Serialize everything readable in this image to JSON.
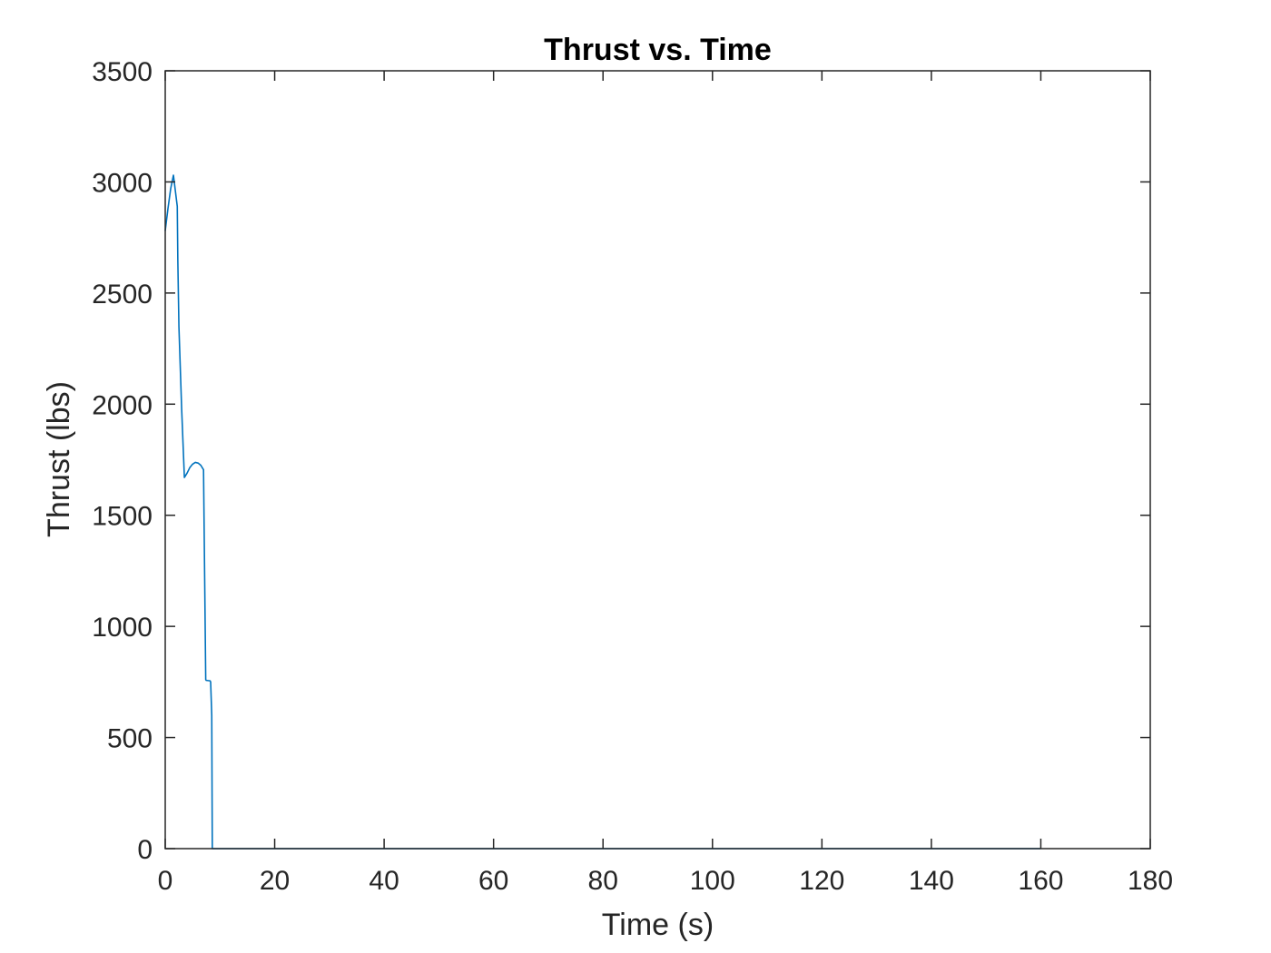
{
  "chart_data": {
    "type": "line",
    "title": "Thrust vs. Time",
    "xlabel": "Time (s)",
    "ylabel": "Thrust (lbs)",
    "xlim": [
      0,
      180
    ],
    "ylim": [
      0,
      3500
    ],
    "x_ticks": [
      0,
      20,
      40,
      60,
      80,
      100,
      120,
      140,
      160,
      180
    ],
    "x_tick_labels": [
      "0",
      "20",
      "40",
      "60",
      "80",
      "100",
      "120",
      "140",
      "160",
      "180"
    ],
    "y_ticks": [
      0,
      500,
      1000,
      1500,
      2000,
      2500,
      3000,
      3500
    ],
    "y_tick_labels": [
      "0",
      "500",
      "1000",
      "1500",
      "2000",
      "2500",
      "3000",
      "3500"
    ],
    "grid": false,
    "legend": "none",
    "colors": {
      "series": "#0072bd",
      "axes": "#262626",
      "background": "#ffffff"
    },
    "series": [
      {
        "x": [
          0,
          0.5,
          1.0,
          1.5,
          2.2,
          2.3,
          2.5,
          3.0,
          3.5,
          4.0,
          4.5,
          5.0,
          5.5,
          6.0,
          6.5,
          7.0,
          7.3,
          7.4,
          7.5,
          8.2,
          8.3,
          8.5,
          8.6,
          20,
          40,
          60,
          80,
          100,
          120,
          140,
          160
        ],
        "y": [
          2780,
          2880,
          2970,
          3030,
          2890,
          2650,
          2350,
          1980,
          1670,
          1690,
          1715,
          1730,
          1738,
          1735,
          1725,
          1705,
          1000,
          760,
          757,
          755,
          750,
          600,
          0,
          0,
          0,
          0,
          0,
          0,
          0,
          0,
          0
        ]
      }
    ]
  }
}
